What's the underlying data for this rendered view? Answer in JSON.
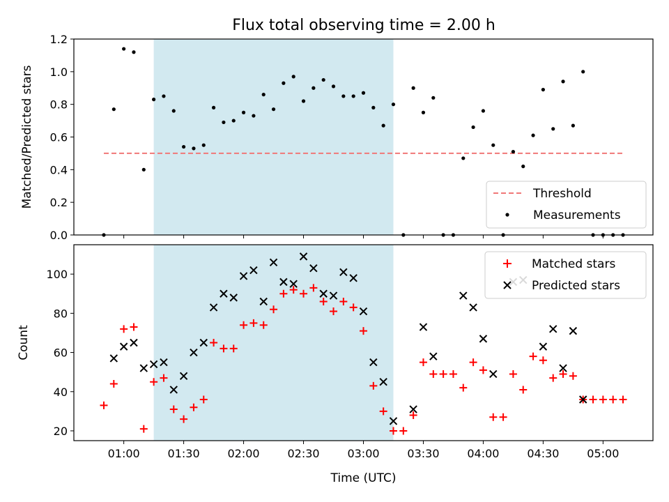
{
  "chart_data": [
    {
      "type": "scatter",
      "title": "Flux total observing time = 2.00 h",
      "ylabel": "Matched/Predicted stars",
      "ylim": [
        0,
        1.2
      ],
      "yticks": [
        "0.0",
        "0.2",
        "0.4",
        "0.6",
        "0.8",
        "1.0",
        "1.2"
      ],
      "xlim": [
        "00:35",
        "05:25"
      ],
      "shaded_interval": [
        "01:15",
        "03:15"
      ],
      "shade_color": "#d2e9f0",
      "legend_position": "lower right",
      "series": [
        {
          "name": "Threshold",
          "kind": "line",
          "style": "dashed",
          "color": "#f07878",
          "x": [
            "00:50",
            "05:10"
          ],
          "y": [
            0.5,
            0.5
          ]
        },
        {
          "name": "Measurements",
          "kind": "points",
          "color": "#000000",
          "x": [
            "00:50",
            "00:55",
            "01:00",
            "01:05",
            "01:10",
            "01:15",
            "01:20",
            "01:25",
            "01:30",
            "01:35",
            "01:40",
            "01:45",
            "01:50",
            "01:55",
            "02:00",
            "02:05",
            "02:10",
            "02:15",
            "02:20",
            "02:25",
            "02:30",
            "02:35",
            "02:40",
            "02:45",
            "02:50",
            "02:55",
            "03:00",
            "03:05",
            "03:10",
            "03:15",
            "03:20",
            "03:25",
            "03:30",
            "03:35",
            "03:40",
            "03:45",
            "03:50",
            "03:55",
            "04:00",
            "04:05",
            "04:10",
            "04:15",
            "04:20",
            "04:25",
            "04:30",
            "04:35",
            "04:40",
            "04:45",
            "04:50",
            "04:55",
            "05:00",
            "05:05",
            "05:10"
          ],
          "y": [
            0.0,
            0.77,
            1.14,
            1.12,
            0.4,
            0.83,
            0.85,
            0.76,
            0.54,
            0.53,
            0.55,
            0.78,
            0.69,
            0.7,
            0.75,
            0.73,
            0.86,
            0.77,
            0.93,
            0.97,
            0.82,
            0.9,
            0.95,
            0.91,
            0.85,
            0.85,
            0.87,
            0.78,
            0.67,
            0.8,
            0.0,
            0.9,
            0.75,
            0.84,
            0.0,
            0.0,
            0.47,
            0.66,
            0.76,
            0.55,
            0.0,
            0.51,
            0.42,
            0.61,
            0.89,
            0.65,
            0.94,
            0.67,
            1.0,
            0.0,
            0.0,
            0.0,
            0.0
          ]
        }
      ]
    },
    {
      "type": "scatter",
      "xlabel": "Time (UTC)",
      "ylabel": "Count",
      "ylim": [
        15,
        115
      ],
      "yticks": [
        "20",
        "40",
        "60",
        "80",
        "100"
      ],
      "xlim": [
        "00:35",
        "05:25"
      ],
      "xticks": [
        "01:00",
        "01:30",
        "02:00",
        "02:30",
        "03:00",
        "03:30",
        "04:00",
        "04:30",
        "05:00"
      ],
      "shaded_interval": [
        "01:15",
        "03:15"
      ],
      "shade_color": "#d2e9f0",
      "legend_position": "upper right",
      "series": [
        {
          "name": "Matched stars",
          "marker": "+",
          "color": "#ff0000",
          "x": [
            "00:50",
            "00:55",
            "01:00",
            "01:05",
            "01:10",
            "01:15",
            "01:20",
            "01:25",
            "01:30",
            "01:35",
            "01:40",
            "01:45",
            "01:50",
            "01:55",
            "02:00",
            "02:05",
            "02:10",
            "02:15",
            "02:20",
            "02:25",
            "02:30",
            "02:35",
            "02:40",
            "02:45",
            "02:50",
            "02:55",
            "03:00",
            "03:05",
            "03:10",
            "03:15",
            "03:20",
            "03:25",
            "03:30",
            "03:35",
            "03:40",
            "03:45",
            "03:50",
            "03:55",
            "04:00",
            "04:05",
            "04:10",
            "04:15",
            "04:20",
            "04:25",
            "04:30",
            "04:35",
            "04:40",
            "04:45",
            "04:50",
            "04:55",
            "05:00",
            "05:05",
            "05:10"
          ],
          "y": [
            33,
            44,
            72,
            73,
            21,
            45,
            47,
            31,
            26,
            32,
            36,
            65,
            62,
            62,
            74,
            75,
            74,
            82,
            90,
            92,
            90,
            93,
            86,
            81,
            86,
            83,
            71,
            43,
            30,
            20,
            20,
            28,
            55,
            49,
            49,
            49,
            42,
            55,
            51,
            27,
            27,
            49,
            41,
            58,
            56,
            47,
            49,
            48,
            36,
            36,
            36,
            36,
            36
          ]
        },
        {
          "name": "Predicted stars",
          "marker": "x",
          "color": "#000000",
          "x": [
            "00:55",
            "01:00",
            "01:05",
            "01:10",
            "01:15",
            "01:20",
            "01:25",
            "01:30",
            "01:35",
            "01:40",
            "01:45",
            "01:50",
            "01:55",
            "02:00",
            "02:05",
            "02:10",
            "02:15",
            "02:20",
            "02:25",
            "02:30",
            "02:35",
            "02:40",
            "02:45",
            "02:50",
            "02:55",
            "03:00",
            "03:05",
            "03:10",
            "03:15",
            "03:25",
            "03:30",
            "03:35",
            "03:50",
            "03:55",
            "04:00",
            "04:05",
            "04:15",
            "04:20",
            "04:30",
            "04:35",
            "04:40",
            "04:45",
            "04:50"
          ],
          "y": [
            57,
            63,
            65,
            52,
            54,
            55,
            41,
            48,
            60,
            65,
            83,
            90,
            88,
            99,
            102,
            86,
            106,
            96,
            95,
            109,
            103,
            90,
            89,
            101,
            98,
            81,
            55,
            45,
            25,
            31,
            73,
            58,
            89,
            83,
            67,
            49,
            96,
            97,
            63,
            72,
            52,
            71,
            36
          ]
        }
      ]
    }
  ]
}
